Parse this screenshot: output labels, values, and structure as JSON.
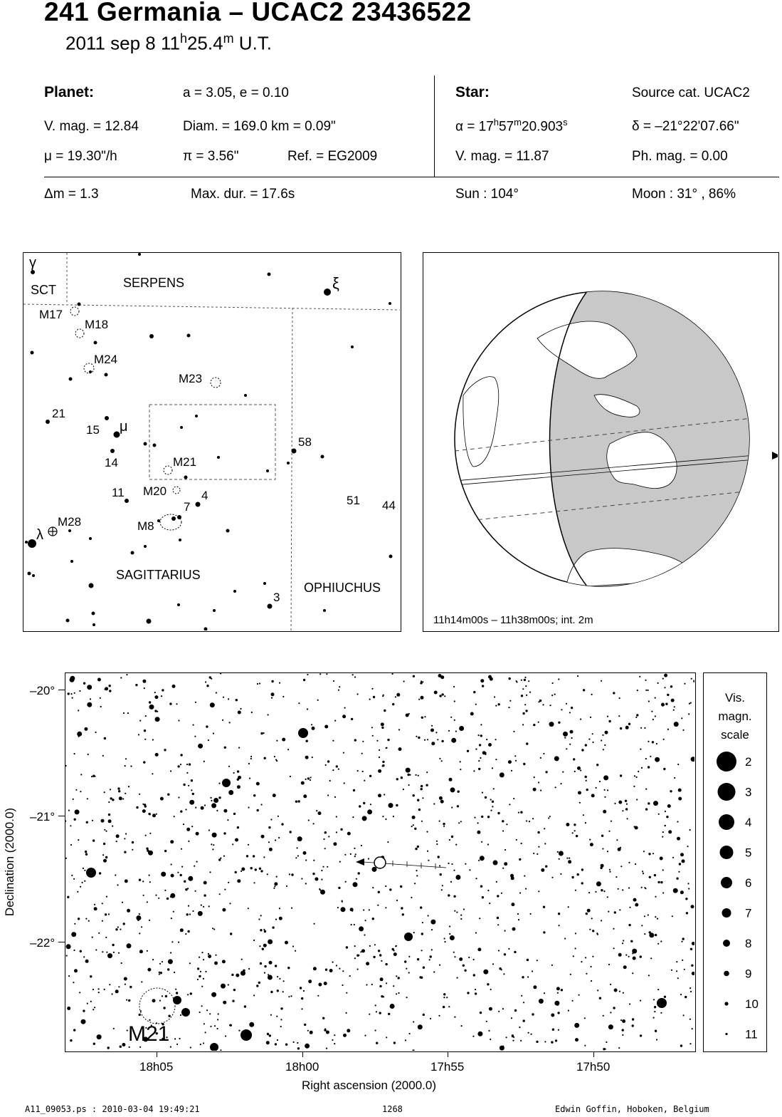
{
  "header": {
    "title": "241 Germania  –  UCAC2 23436522",
    "date": "2011 sep  8  11",
    "hours_unit": "h",
    "minutes": "25.4",
    "minutes_unit": "m",
    "time_suffix": " U.T."
  },
  "planet": {
    "heading": "Planet:",
    "orbit": "a = 3.05, e = 0.10",
    "vmag": "V. mag. = 12.84",
    "diam": "Diam. = 169.0 km = 0.09\"",
    "mu": "μ =  19.30\"/h",
    "pi": "π =  3.56\"",
    "ref": "Ref. = EG2009"
  },
  "star": {
    "heading": "Star:",
    "source": "Source cat.  UCAC2",
    "ra_prefix": "α = 17",
    "ra_h": "h",
    "ra_min": "57",
    "ra_m": "m",
    "ra_sec": "20.903",
    "ra_s": "s",
    "dec": "δ = –21°22'07.66\"",
    "vmag": "V. mag. = 11.87",
    "phmag": "Ph. mag. =  0.00"
  },
  "event": {
    "dm": "Δm = 1.3",
    "maxdur": "Max. dur. = 17.6s",
    "sun": "Sun : 104°",
    "moon": "Moon :  31° , 86%"
  },
  "finder": {
    "constellations": [
      "SCT",
      "SERPENS",
      "SAGITTARIUS",
      "OPHIUCHUS"
    ],
    "labels": [
      "γ",
      "ξ",
      "M17",
      "M18",
      "M24",
      "M23",
      "21",
      "15",
      "μ",
      "14",
      "M21",
      "58",
      "11",
      "M20",
      "4",
      "7",
      "51",
      "44",
      "M8",
      "M28",
      "λ",
      "3"
    ]
  },
  "globe": {
    "caption": "11h14m00s – 11h38m00s; int.  2m"
  },
  "chart": {
    "dec_ticks": [
      "–20°",
      "–21°",
      "–22°"
    ],
    "ra_ticks": [
      "18h05",
      "18h00",
      "17h55",
      "17h50"
    ],
    "xlabel": "Right ascension (2000.0)",
    "ylabel": "Declination (2000.0)",
    "cluster_label": "M21"
  },
  "scale": {
    "title": [
      "Vis.",
      "magn.",
      "scale"
    ],
    "mags": [
      "2",
      "3",
      "4",
      "5",
      "6",
      "7",
      "8",
      "9",
      "10",
      "11"
    ]
  },
  "footer": {
    "file": "A11_09053.ps : 2010-03-04 19:49:21",
    "page": "1268",
    "author": "Edwin Goffin, Hoboken, Belgium"
  }
}
